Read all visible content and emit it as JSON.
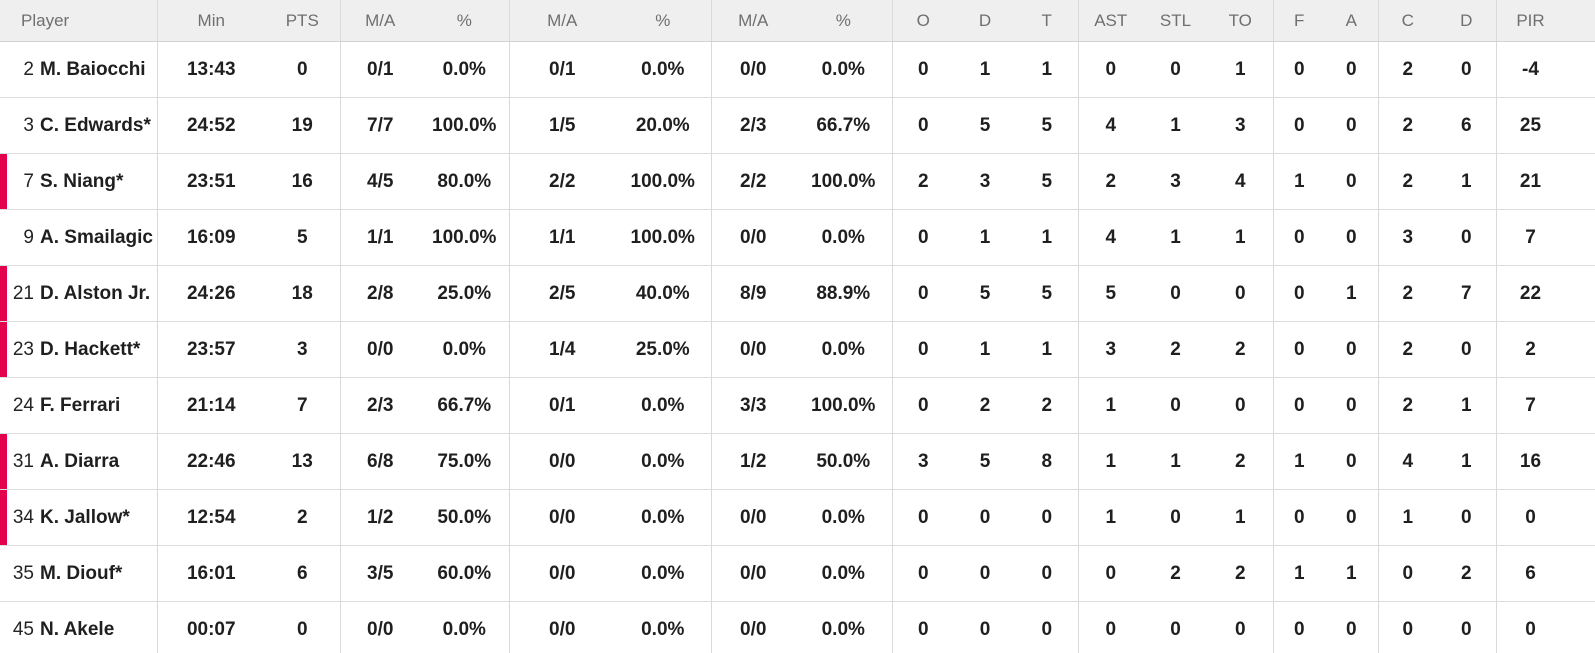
{
  "colors": {
    "on_court_marker": "#e2024e",
    "header_bg": "#efefef",
    "header_text": "#6f6f6f",
    "row_border": "#dcdcdc"
  },
  "table": {
    "headers": [
      "Player",
      "Min",
      "PTS",
      "M/A",
      "%",
      "M/A",
      "%",
      "M/A",
      "%",
      "O",
      "D",
      "T",
      "AST",
      "STL",
      "TO",
      "F",
      "A",
      "C",
      "D",
      "PIR"
    ],
    "rows": [
      {
        "number": "2",
        "name": "M. Baiocchi",
        "on_court": false,
        "stats": [
          "13:43",
          "0",
          "0/1",
          "0.0%",
          "0/1",
          "0.0%",
          "0/0",
          "0.0%",
          "0",
          "1",
          "1",
          "0",
          "0",
          "1",
          "0",
          "0",
          "2",
          "0",
          "-4"
        ]
      },
      {
        "number": "3",
        "name": "C. Edwards*",
        "on_court": false,
        "stats": [
          "24:52",
          "19",
          "7/7",
          "100.0%",
          "1/5",
          "20.0%",
          "2/3",
          "66.7%",
          "0",
          "5",
          "5",
          "4",
          "1",
          "3",
          "0",
          "0",
          "2",
          "6",
          "25"
        ]
      },
      {
        "number": "7",
        "name": "S. Niang*",
        "on_court": true,
        "stats": [
          "23:51",
          "16",
          "4/5",
          "80.0%",
          "2/2",
          "100.0%",
          "2/2",
          "100.0%",
          "2",
          "3",
          "5",
          "2",
          "3",
          "4",
          "1",
          "0",
          "2",
          "1",
          "21"
        ]
      },
      {
        "number": "9",
        "name": "A. Smailagic",
        "on_court": false,
        "stats": [
          "16:09",
          "5",
          "1/1",
          "100.0%",
          "1/1",
          "100.0%",
          "0/0",
          "0.0%",
          "0",
          "1",
          "1",
          "4",
          "1",
          "1",
          "0",
          "0",
          "3",
          "0",
          "7"
        ]
      },
      {
        "number": "21",
        "name": "D. Alston Jr.",
        "on_court": true,
        "stats": [
          "24:26",
          "18",
          "2/8",
          "25.0%",
          "2/5",
          "40.0%",
          "8/9",
          "88.9%",
          "0",
          "5",
          "5",
          "5",
          "0",
          "0",
          "0",
          "1",
          "2",
          "7",
          "22"
        ]
      },
      {
        "number": "23",
        "name": "D. Hackett*",
        "on_court": true,
        "stats": [
          "23:57",
          "3",
          "0/0",
          "0.0%",
          "1/4",
          "25.0%",
          "0/0",
          "0.0%",
          "0",
          "1",
          "1",
          "3",
          "2",
          "2",
          "0",
          "0",
          "2",
          "0",
          "2"
        ]
      },
      {
        "number": "24",
        "name": "F. Ferrari",
        "on_court": false,
        "stats": [
          "21:14",
          "7",
          "2/3",
          "66.7%",
          "0/1",
          "0.0%",
          "3/3",
          "100.0%",
          "0",
          "2",
          "2",
          "1",
          "0",
          "0",
          "0",
          "0",
          "2",
          "1",
          "7"
        ]
      },
      {
        "number": "31",
        "name": "A. Diarra",
        "on_court": true,
        "stats": [
          "22:46",
          "13",
          "6/8",
          "75.0%",
          "0/0",
          "0.0%",
          "1/2",
          "50.0%",
          "3",
          "5",
          "8",
          "1",
          "1",
          "2",
          "1",
          "0",
          "4",
          "1",
          "16"
        ]
      },
      {
        "number": "34",
        "name": "K. Jallow*",
        "on_court": true,
        "stats": [
          "12:54",
          "2",
          "1/2",
          "50.0%",
          "0/0",
          "0.0%",
          "0/0",
          "0.0%",
          "0",
          "0",
          "0",
          "1",
          "0",
          "1",
          "0",
          "0",
          "1",
          "0",
          "0"
        ]
      },
      {
        "number": "35",
        "name": "M. Diouf*",
        "on_court": false,
        "stats": [
          "16:01",
          "6",
          "3/5",
          "60.0%",
          "0/0",
          "0.0%",
          "0/0",
          "0.0%",
          "0",
          "0",
          "0",
          "0",
          "2",
          "2",
          "1",
          "1",
          "0",
          "2",
          "6"
        ]
      },
      {
        "number": "45",
        "name": "N. Akele",
        "on_court": false,
        "stats": [
          "00:07",
          "0",
          "0/0",
          "0.0%",
          "0/0",
          "0.0%",
          "0/0",
          "0.0%",
          "0",
          "0",
          "0",
          "0",
          "0",
          "0",
          "0",
          "0",
          "0",
          "0",
          "0"
        ]
      }
    ]
  }
}
